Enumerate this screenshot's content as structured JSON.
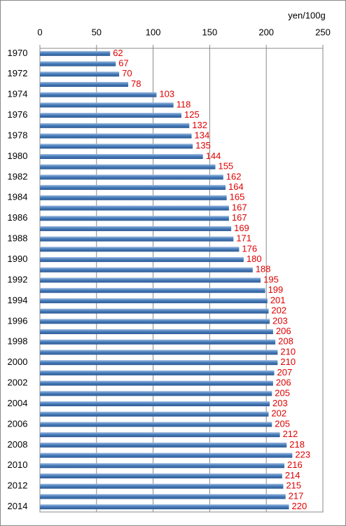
{
  "chart_data": {
    "type": "bar",
    "orientation": "horizontal",
    "x_label": "yen/100g",
    "categories": [
      "1970",
      null,
      "1972",
      null,
      "1974",
      null,
      "1976",
      null,
      "1978",
      null,
      "1980",
      null,
      "1982",
      null,
      "1984",
      null,
      "1986",
      null,
      "1988",
      null,
      "1990",
      null,
      "1992",
      null,
      "1994",
      null,
      "1996",
      null,
      "1998",
      null,
      "2000",
      null,
      "2002",
      null,
      "2004",
      null,
      "2006",
      null,
      "2008",
      null,
      "2010",
      null,
      "2012",
      null,
      "2014"
    ],
    "values": [
      62,
      67,
      70,
      78,
      103,
      118,
      125,
      132,
      134,
      135,
      144,
      155,
      162,
      164,
      165,
      167,
      167,
      169,
      171,
      176,
      180,
      188,
      195,
      199,
      201,
      202,
      203,
      206,
      208,
      210,
      210,
      207,
      206,
      205,
      203,
      202,
      205,
      212,
      218,
      223,
      216,
      214,
      215,
      217,
      220
    ],
    "color": "#4a7ebb",
    "value_label_color": "#e00000",
    "xlim": [
      0,
      250
    ],
    "xticks": [
      0,
      50,
      100,
      150,
      200,
      250
    ],
    "grid": true
  }
}
